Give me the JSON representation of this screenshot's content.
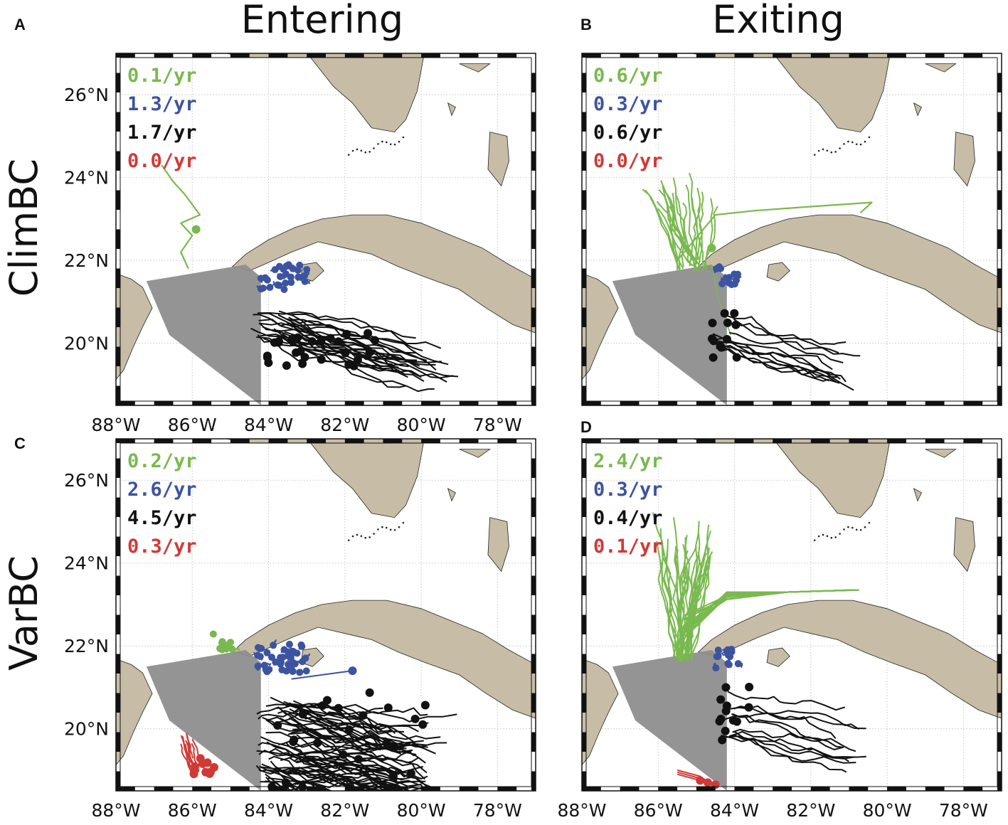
{
  "figure": {
    "col_titles": [
      "Entering",
      "Exiting"
    ],
    "row_titles": [
      "ClimBC",
      "VarBC"
    ]
  },
  "colors": {
    "green": "#79b94f",
    "blue": "#3c54a0",
    "black": "#111111",
    "red": "#cf3a36",
    "land": "#c7bda6",
    "region": "#8e8e8e",
    "grid": "#d4d4d4"
  },
  "chart_data": [
    {
      "type": "map",
      "panel": "A",
      "xlim": [
        -88,
        -77
      ],
      "ylim": [
        18.5,
        27
      ],
      "x_ticks": [
        "88°W",
        "86°W",
        "84°W",
        "82°W",
        "80°W",
        "78°W"
      ],
      "y_ticks": [
        "20°N",
        "22°N",
        "24°N",
        "26°N"
      ],
      "rates": [
        {
          "color": "green",
          "text": "0.1/yr"
        },
        {
          "color": "blue",
          "text": "1.3/yr"
        },
        {
          "color": "black",
          "text": "1.7/yr"
        },
        {
          "color": "red",
          "text": "0.0/yr"
        }
      ]
    },
    {
      "type": "map",
      "panel": "B",
      "xlim": [
        -88,
        -77
      ],
      "ylim": [
        18.5,
        27
      ],
      "x_ticks": [],
      "y_ticks": [],
      "rates": [
        {
          "color": "green",
          "text": "0.6/yr"
        },
        {
          "color": "blue",
          "text": "0.3/yr"
        },
        {
          "color": "black",
          "text": "0.6/yr"
        },
        {
          "color": "red",
          "text": "0.0/yr"
        }
      ]
    },
    {
      "type": "map",
      "panel": "C",
      "xlim": [
        -88,
        -77
      ],
      "ylim": [
        18.5,
        27
      ],
      "x_ticks": [
        "88°W",
        "86°W",
        "84°W",
        "82°W",
        "80°W",
        "78°W"
      ],
      "y_ticks": [
        "20°N",
        "22°N",
        "24°N",
        "26°N"
      ],
      "rates": [
        {
          "color": "green",
          "text": "0.2/yr"
        },
        {
          "color": "blue",
          "text": "2.6/yr"
        },
        {
          "color": "black",
          "text": "4.5/yr"
        },
        {
          "color": "red",
          "text": "0.3/yr"
        }
      ]
    },
    {
      "type": "map",
      "panel": "D",
      "xlim": [
        -88,
        -77
      ],
      "ylim": [
        18.5,
        27
      ],
      "x_ticks": [
        "88°W",
        "86°W",
        "84°W",
        "82°W",
        "80°W",
        "78°W"
      ],
      "y_ticks": [],
      "rates": [
        {
          "color": "green",
          "text": "2.4/yr"
        },
        {
          "color": "blue",
          "text": "0.3/yr"
        },
        {
          "color": "black",
          "text": "0.4/yr"
        },
        {
          "color": "red",
          "text": "0.1/yr"
        }
      ]
    }
  ]
}
